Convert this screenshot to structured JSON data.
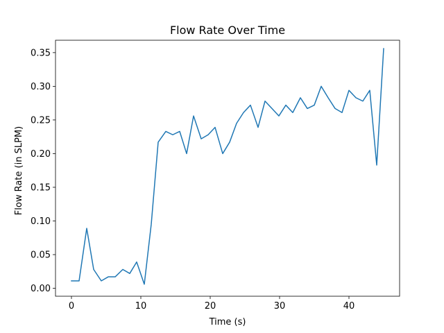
{
  "chart_data": {
    "type": "line",
    "title": "Flow Rate Over Time",
    "xlabel": "Time (s)",
    "ylabel": "Flow Rate (in SLPM)",
    "xlim": [
      -2.3,
      47.3
    ],
    "ylim": [
      -0.0118,
      0.3684
    ],
    "grid": false,
    "line_color": "#1f77b4",
    "xticks": [
      0,
      10,
      20,
      30,
      40
    ],
    "xtick_labels": [
      "0",
      "10",
      "20",
      "30",
      "40"
    ],
    "yticks": [
      0.0,
      0.05,
      0.1,
      0.15,
      0.2,
      0.25,
      0.3,
      0.35
    ],
    "ytick_labels": [
      "0.00",
      "0.05",
      "0.10",
      "0.15",
      "0.20",
      "0.25",
      "0.30",
      "0.35"
    ],
    "series": [
      {
        "name": "Flow Rate",
        "x": [
          0.0,
          1.1,
          2.2,
          3.2,
          4.3,
          5.3,
          6.3,
          7.4,
          8.4,
          9.4,
          10.5,
          11.5,
          12.5,
          13.6,
          14.6,
          15.6,
          16.6,
          17.6,
          18.7,
          19.7,
          20.7,
          21.8,
          22.8,
          23.8,
          24.8,
          25.8,
          26.9,
          27.9,
          28.9,
          29.9,
          30.9,
          31.9,
          33.0,
          34.0,
          35.0,
          36.0,
          37.0,
          38.0,
          39.0,
          40.0,
          41.0,
          42.0,
          43.0,
          44.0,
          45.0
        ],
        "y": [
          0.011,
          0.011,
          0.089,
          0.028,
          0.011,
          0.017,
          0.017,
          0.028,
          0.022,
          0.039,
          0.006,
          0.095,
          0.217,
          0.233,
          0.228,
          0.233,
          0.2,
          0.256,
          0.222,
          0.228,
          0.239,
          0.2,
          0.217,
          0.245,
          0.261,
          0.272,
          0.239,
          0.278,
          0.267,
          0.256,
          0.272,
          0.261,
          0.283,
          0.267,
          0.272,
          0.3,
          0.283,
          0.267,
          0.261,
          0.294,
          0.283,
          0.278,
          0.294,
          0.183,
          0.356
        ]
      }
    ]
  }
}
